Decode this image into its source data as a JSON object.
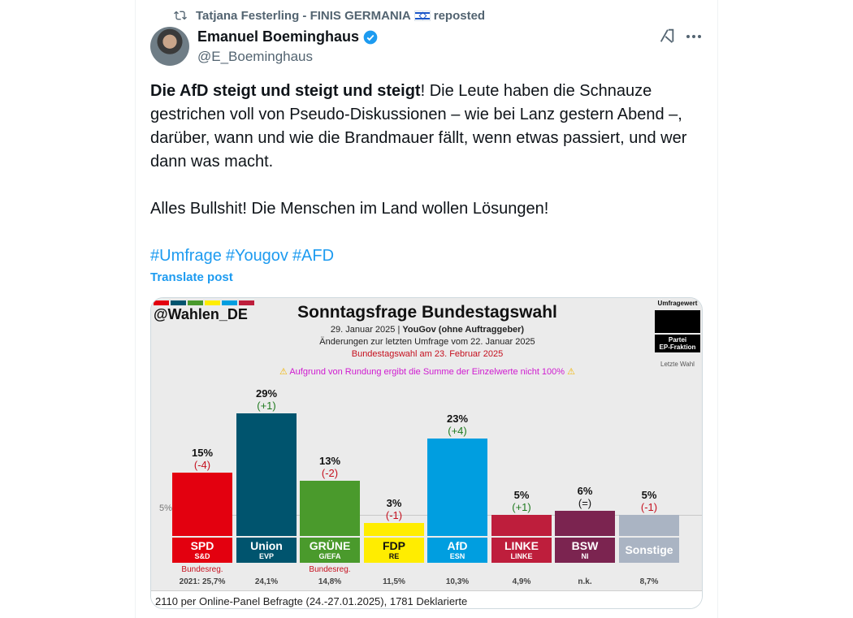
{
  "repost": {
    "text_before": "Tatjana Festerling - FINIS GERMANIA",
    "text_after": "reposted",
    "flag_icon": "israel-flag-icon"
  },
  "author": {
    "name": "Emanuel Boeminghaus",
    "handle": "@E_Boeminghaus",
    "verified": true
  },
  "post": {
    "bold_lead": "Die AfD steigt und steigt und steigt",
    "para1_rest": "! Die Leute haben die Schnauze gestrichen voll von Pseudo-Diskussionen – wie bei Lanz gestern Abend –, darüber, wann und wie die Brandmauer fällt, wenn etwas passiert, und wer dann was macht.",
    "para2": "Alles Bullshit! Die Menschen im Land wollen Lösungen!",
    "hashtags": [
      "#Umfrage",
      "#Yougov",
      "#AFD"
    ],
    "translate": "Translate post"
  },
  "colors": {
    "accent": "#1d9bf0",
    "text": "#0f1419",
    "muted": "#536471"
  },
  "chart_data": {
    "type": "bar",
    "brand": "@Wahlen_DE",
    "title": "Sonntagsfrage Bundestagswahl",
    "date_prefix": "29. Januar 2025",
    "pollster": "YouGov (ohne Auftraggeber)",
    "change_note": "Änderungen zur letzten Umfrage vom 22. Januar 2025",
    "election_note": "Bundestagswahl am 23. Februar 2025",
    "warning": "Aufgrund von Rundung ergibt die Summe der Einzelwerte nicht 100%",
    "legend": {
      "value_label": "Umfragewert",
      "party_label": "Partei",
      "group_label": "EP-Fraktion",
      "last_label": "Letzte Wahl"
    },
    "threshold_label": "5%",
    "threshold": 5,
    "ylim": [
      0,
      30
    ],
    "categories": [
      "SPD",
      "Union",
      "GRÜNE",
      "FDP",
      "AfD",
      "LINKE",
      "BSW",
      "Sonstige"
    ],
    "ep_groups": [
      "S&D",
      "EVP",
      "G/EFA",
      "RE",
      "ESN",
      "LINKE",
      "NI",
      ""
    ],
    "values": [
      15,
      29,
      13,
      3,
      23,
      5,
      6,
      5
    ],
    "value_labels": [
      "15%",
      "29%",
      "13%",
      "3%",
      "23%",
      "5%",
      "6%",
      "5%"
    ],
    "changes": [
      "(-4)",
      "(+1)",
      "(-2)",
      "(-1)",
      "(+4)",
      "(+1)",
      "(=)",
      "(-1)"
    ],
    "change_kind": [
      "neg",
      "pos",
      "neg",
      "neg",
      "pos",
      "pos",
      "neu",
      "neg"
    ],
    "gov_notes": [
      "Bundesreg.",
      "",
      "Bundesreg.",
      "",
      "",
      "",
      "",
      ""
    ],
    "last_election": [
      "2021: 25,7%",
      "24,1%",
      "14,8%",
      "11,5%",
      "10,3%",
      "4,9%",
      "n.k.",
      "8,7%"
    ],
    "bar_colors": [
      "#e3000f",
      "#00546e",
      "#4a9a2c",
      "#ffed00",
      "#009ee0",
      "#be1e3c",
      "#7b2450",
      "#aab4c3"
    ],
    "label_colors": [
      "#ffffff",
      "#ffffff",
      "#ffffff",
      "#111111",
      "#ffffff",
      "#ffffff",
      "#ffffff",
      "#ffffff"
    ],
    "footer": "2110 per Online-Panel Befragte (24.-27.01.2025), 1781 Deklarierte"
  }
}
